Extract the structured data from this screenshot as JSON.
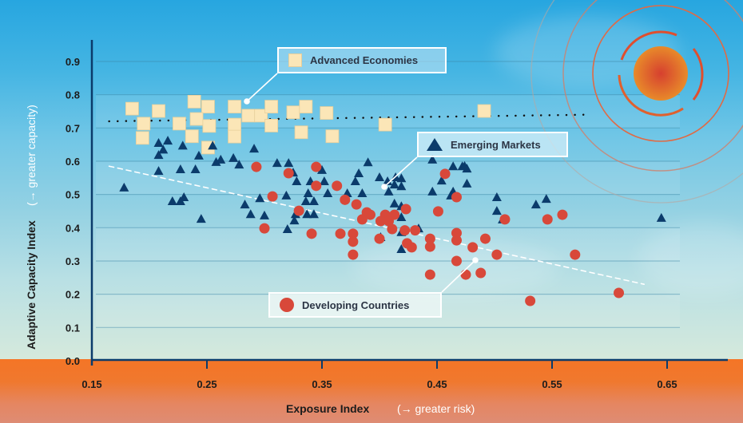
{
  "chart_data": {
    "type": "scatter",
    "title": "",
    "xlabel": "Exposure Index",
    "xlabel_note": "(→ greater risk)",
    "ylabel": "Adaptive Capacity Index",
    "ylabel_note": "(→ greater capacity)",
    "xlim": [
      0.15,
      0.68
    ],
    "ylim": [
      0.0,
      0.95
    ],
    "xticks": [
      "0.15",
      "0.25",
      "0.35",
      "0.45",
      "0.55",
      "0.65"
    ],
    "xtick_values": [
      0.15,
      0.25,
      0.35,
      0.45,
      0.55,
      0.65
    ],
    "yticks": [
      "0.0",
      "0.1",
      "0.2",
      "0.3",
      "0.4",
      "0.5",
      "0.6",
      "0.7",
      "0.8",
      "0.9"
    ],
    "ytick_values": [
      0.0,
      0.1,
      0.2,
      0.3,
      0.4,
      0.5,
      0.6,
      0.7,
      0.8,
      0.9
    ],
    "grid": true,
    "series": [
      {
        "name": "Advanced Economies",
        "marker": "square",
        "color": "#fbe6b7",
        "points": [
          [
            0.185,
            0.758
          ],
          [
            0.208,
            0.751
          ],
          [
            0.239,
            0.779
          ],
          [
            0.251,
            0.764
          ],
          [
            0.195,
            0.713
          ],
          [
            0.226,
            0.713
          ],
          [
            0.241,
            0.727
          ],
          [
            0.252,
            0.706
          ],
          [
            0.194,
            0.67
          ],
          [
            0.237,
            0.675
          ],
          [
            0.251,
            0.641
          ],
          [
            0.274,
            0.764
          ],
          [
            0.286,
            0.737
          ],
          [
            0.297,
            0.737
          ],
          [
            0.306,
            0.764
          ],
          [
            0.274,
            0.71
          ],
          [
            0.274,
            0.674
          ],
          [
            0.306,
            0.707
          ],
          [
            0.325,
            0.747
          ],
          [
            0.336,
            0.764
          ],
          [
            0.332,
            0.687
          ],
          [
            0.354,
            0.745
          ],
          [
            0.359,
            0.675
          ],
          [
            0.405,
            0.71
          ],
          [
            0.491,
            0.751
          ]
        ],
        "trendline": {
          "style": "dotted",
          "color": "#111111",
          "from": [
            0.165,
            0.72
          ],
          "to": [
            0.584,
            0.74
          ]
        }
      },
      {
        "name": "Emerging Markets",
        "marker": "triangle",
        "color": "#0b3b6b",
        "points": [
          [
            0.178,
            0.521
          ],
          [
            0.208,
            0.655
          ],
          [
            0.216,
            0.662
          ],
          [
            0.212,
            0.635
          ],
          [
            0.229,
            0.647
          ],
          [
            0.255,
            0.647
          ],
          [
            0.291,
            0.638
          ],
          [
            0.208,
            0.619
          ],
          [
            0.243,
            0.617
          ],
          [
            0.258,
            0.598
          ],
          [
            0.262,
            0.605
          ],
          [
            0.273,
            0.61
          ],
          [
            0.278,
            0.59
          ],
          [
            0.208,
            0.571
          ],
          [
            0.227,
            0.576
          ],
          [
            0.24,
            0.576
          ],
          [
            0.23,
            0.492
          ],
          [
            0.22,
            0.48
          ],
          [
            0.227,
            0.48
          ],
          [
            0.283,
            0.47
          ],
          [
            0.288,
            0.441
          ],
          [
            0.245,
            0.427
          ],
          [
            0.3,
            0.437
          ],
          [
            0.296,
            0.489
          ],
          [
            0.327,
            0.441
          ],
          [
            0.326,
            0.422
          ],
          [
            0.337,
            0.441
          ],
          [
            0.343,
            0.441
          ],
          [
            0.32,
            0.396
          ],
          [
            0.311,
            0.595
          ],
          [
            0.321,
            0.595
          ],
          [
            0.325,
            0.566
          ],
          [
            0.35,
            0.574
          ],
          [
            0.352,
            0.54
          ],
          [
            0.328,
            0.54
          ],
          [
            0.34,
            0.54
          ],
          [
            0.338,
            0.504
          ],
          [
            0.355,
            0.504
          ],
          [
            0.382,
            0.564
          ],
          [
            0.379,
            0.54
          ],
          [
            0.39,
            0.597
          ],
          [
            0.407,
            0.54
          ],
          [
            0.419,
            0.549
          ],
          [
            0.413,
            0.53
          ],
          [
            0.419,
            0.525
          ],
          [
            0.319,
            0.497
          ],
          [
            0.336,
            0.48
          ],
          [
            0.343,
            0.48
          ],
          [
            0.372,
            0.504
          ],
          [
            0.385,
            0.504
          ],
          [
            0.419,
            0.465
          ],
          [
            0.419,
            0.432
          ],
          [
            0.419,
            0.387
          ],
          [
            0.419,
            0.336
          ],
          [
            0.401,
            0.372
          ],
          [
            0.446,
            0.605
          ],
          [
            0.464,
            0.585
          ],
          [
            0.472,
            0.585
          ],
          [
            0.476,
            0.578
          ],
          [
            0.4,
            0.552
          ],
          [
            0.414,
            0.552
          ],
          [
            0.454,
            0.542
          ],
          [
            0.476,
            0.533
          ],
          [
            0.408,
            0.509
          ],
          [
            0.446,
            0.509
          ],
          [
            0.464,
            0.509
          ],
          [
            0.462,
            0.497
          ],
          [
            0.502,
            0.492
          ],
          [
            0.413,
            0.473
          ],
          [
            0.502,
            0.451
          ],
          [
            0.507,
            0.425
          ],
          [
            0.434,
            0.398
          ],
          [
            0.474,
            0.586
          ],
          [
            0.536,
            0.47
          ],
          [
            0.545,
            0.487
          ],
          [
            0.645,
            0.43
          ]
        ],
        "trendline": {
          "style": "dashed",
          "color": "#ffffff",
          "from": [
            0.165,
            0.585
          ],
          "to": [
            0.63,
            0.23
          ]
        }
      },
      {
        "name": "Developing Countries",
        "marker": "circle",
        "color": "#d8483a",
        "points": [
          [
            0.293,
            0.583
          ],
          [
            0.321,
            0.564
          ],
          [
            0.345,
            0.583
          ],
          [
            0.345,
            0.526
          ],
          [
            0.363,
            0.526
          ],
          [
            0.307,
            0.494
          ],
          [
            0.37,
            0.484
          ],
          [
            0.38,
            0.47
          ],
          [
            0.33,
            0.451
          ],
          [
            0.389,
            0.446
          ],
          [
            0.385,
            0.425
          ],
          [
            0.401,
            0.42
          ],
          [
            0.3,
            0.398
          ],
          [
            0.341,
            0.382
          ],
          [
            0.366,
            0.382
          ],
          [
            0.377,
            0.382
          ],
          [
            0.377,
            0.358
          ],
          [
            0.4,
            0.367
          ],
          [
            0.377,
            0.319
          ],
          [
            0.392,
            0.439
          ],
          [
            0.405,
            0.439
          ],
          [
            0.413,
            0.439
          ],
          [
            0.423,
            0.456
          ],
          [
            0.451,
            0.449
          ],
          [
            0.408,
            0.42
          ],
          [
            0.422,
            0.392
          ],
          [
            0.431,
            0.392
          ],
          [
            0.424,
            0.353
          ],
          [
            0.411,
            0.396
          ],
          [
            0.428,
            0.341
          ],
          [
            0.444,
            0.367
          ],
          [
            0.444,
            0.343
          ],
          [
            0.457,
            0.562
          ],
          [
            0.467,
            0.492
          ],
          [
            0.467,
            0.384
          ],
          [
            0.467,
            0.362
          ],
          [
            0.467,
            0.3
          ],
          [
            0.481,
            0.341
          ],
          [
            0.475,
            0.259
          ],
          [
            0.488,
            0.264
          ],
          [
            0.492,
            0.367
          ],
          [
            0.444,
            0.259
          ],
          [
            0.502,
            0.319
          ],
          [
            0.509,
            0.425
          ],
          [
            0.546,
            0.425
          ],
          [
            0.559,
            0.439
          ],
          [
            0.57,
            0.319
          ],
          [
            0.531,
            0.18
          ],
          [
            0.608,
            0.204
          ]
        ]
      }
    ],
    "annotations": [
      {
        "label": "Advanced Economies",
        "series": 0
      },
      {
        "label": "Emerging Markets",
        "series": 1
      },
      {
        "label": "Developing Countries",
        "series": 2
      }
    ],
    "legend": "inline-callouts"
  },
  "colors": {
    "axis": "#0b3b6b",
    "square": "#fbe6b7",
    "triangle": "#0b3b6b",
    "circle": "#d8483a",
    "sun": "#e4852c",
    "arrow_y": "#0b3b6b",
    "arrow_x": "#6e1b2b"
  }
}
